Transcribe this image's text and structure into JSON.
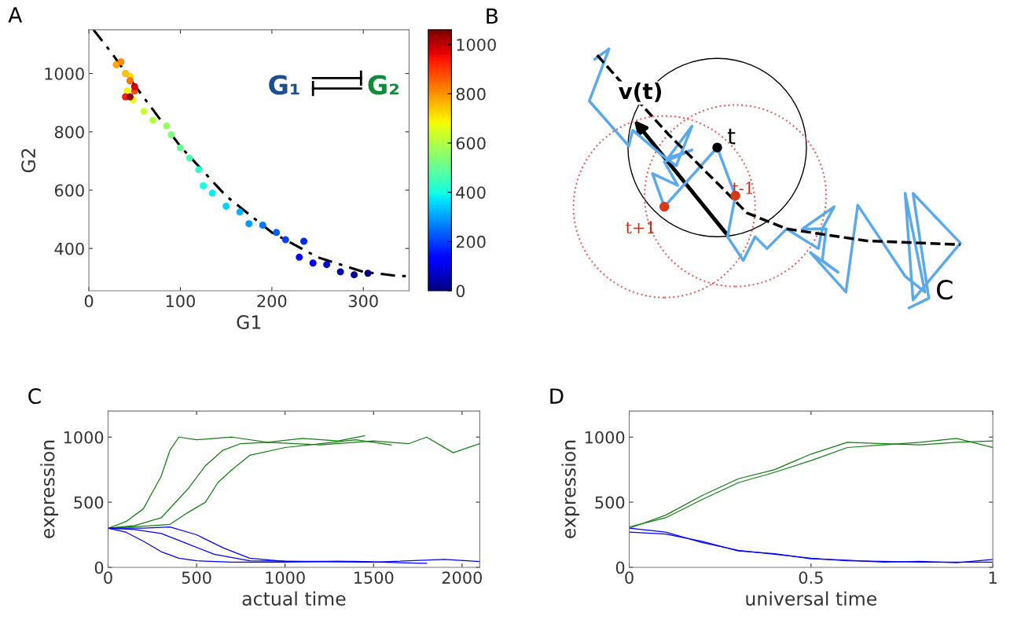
{
  "chart_data": [
    {
      "type": "scatter",
      "title": "A",
      "xlabel": "G1",
      "ylabel": "G2",
      "xlim": [
        0,
        350
      ],
      "xticks": [
        0,
        100,
        200,
        300
      ],
      "ylim": [
        255,
        1150
      ],
      "yticks": [
        400,
        600,
        800,
        1000
      ],
      "clim": [
        0,
        1060
      ],
      "cticks": [
        0,
        200,
        400,
        600,
        800,
        1000
      ],
      "annotations": [
        "G₁",
        "G₂"
      ],
      "series": [
        {
          "type": "line",
          "color": "#000000",
          "line_style": "dashed",
          "x": [
            5,
            25,
            50,
            100,
            150,
            200,
            250,
            300,
            340,
            350
          ],
          "values": [
            1150,
            1070,
            960,
            750,
            580,
            455,
            370,
            320,
            305,
            306
          ]
        },
        {
          "type": "scatter",
          "x": [
            305,
            290,
            275,
            260,
            245,
            230,
            235,
            215,
            205,
            190,
            175,
            165,
            150,
            135,
            125,
            120,
            110,
            100,
            90,
            85,
            70,
            60,
            48,
            42,
            45,
            40,
            30,
            35,
            45,
            50,
            40,
            50,
            45
          ],
          "values": [
            315,
            310,
            320,
            345,
            350,
            370,
            425,
            430,
            455,
            480,
            485,
            525,
            545,
            590,
            615,
            670,
            710,
            745,
            790,
            820,
            840,
            870,
            910,
            940,
            990,
            1000,
            1030,
            1040,
            975,
            940,
            920,
            955,
            920
          ],
          "colors": [
            "#000080",
            "#000093",
            "#0000b0",
            "#0000cc",
            "#0000e9",
            "#0007ff",
            "#0024ff",
            "#0041ff",
            "#005eff",
            "#007bff",
            "#0097ff",
            "#00b4ff",
            "#00d1ff",
            "#00eeff",
            "#0cfff3",
            "#29ffd6",
            "#46ffb9",
            "#63ff9c",
            "#80ff80",
            "#9cff63",
            "#b9ff46",
            "#d6ff29",
            "#f3ff0c",
            "#ffee00",
            "#ffd100",
            "#ffb400",
            "#ff9700",
            "#ff7b00",
            "#ff5e00",
            "#ff3700",
            "#ff0700",
            "#cc0000",
            "#930000"
          ],
          "cvalues": [
            0,
            20,
            50,
            80,
            110,
            140,
            170,
            200,
            230,
            260,
            290,
            320,
            350,
            380,
            410,
            440,
            470,
            500,
            530,
            560,
            590,
            620,
            650,
            680,
            710,
            740,
            770,
            800,
            830,
            870,
            920,
            980,
            1040
          ]
        }
      ]
    },
    {
      "type": "other",
      "title": "B",
      "annotations": [
        "v(t)",
        "t",
        "t-1",
        "t+1",
        "C"
      ]
    },
    {
      "type": "line",
      "title": "C",
      "xlabel": "actual time",
      "ylabel": "expression",
      "xlim": [
        0,
        2100
      ],
      "xticks": [
        0,
        500,
        1000,
        1500,
        2000
      ],
      "ylim": [
        0,
        1200
      ],
      "yticks": [
        0,
        500,
        1000
      ],
      "series": [
        {
          "color": "#137f13",
          "x": [
            0,
            100,
            200,
            300,
            350,
            400,
            500,
            700,
            900,
            1100,
            1300,
            1450
          ],
          "values": [
            300,
            350,
            450,
            700,
            900,
            1000,
            980,
            1000,
            960,
            990,
            970,
            1010
          ]
        },
        {
          "color": "#137f13",
          "x": [
            0,
            150,
            300,
            450,
            550,
            650,
            750,
            900,
            1200,
            1500,
            1700,
            1800,
            1950,
            2100
          ],
          "values": [
            300,
            320,
            380,
            600,
            780,
            900,
            950,
            960,
            940,
            970,
            950,
            1000,
            880,
            950
          ]
        },
        {
          "color": "#137f13",
          "x": [
            0,
            200,
            350,
            450,
            550,
            620,
            700,
            800,
            1000,
            1200,
            1400,
            1600
          ],
          "values": [
            300,
            315,
            330,
            420,
            500,
            650,
            750,
            860,
            920,
            950,
            980,
            940
          ]
        },
        {
          "color": "#0000ff",
          "x": [
            0,
            100,
            200,
            300,
            400,
            500,
            700,
            1000,
            1300,
            1500
          ],
          "values": [
            300,
            270,
            200,
            120,
            70,
            50,
            40,
            40,
            45,
            40
          ]
        },
        {
          "color": "#0000ff",
          "x": [
            0,
            150,
            300,
            450,
            600,
            800,
            1100,
            1400,
            1800
          ],
          "values": [
            300,
            290,
            260,
            180,
            100,
            50,
            45,
            45,
            30
          ]
        },
        {
          "color": "#0000ff",
          "x": [
            0,
            200,
            350,
            500,
            650,
            800,
            1000,
            1500,
            1900,
            2100
          ],
          "values": [
            300,
            300,
            310,
            250,
            150,
            70,
            45,
            40,
            60,
            45
          ]
        }
      ]
    },
    {
      "type": "line",
      "title": "D",
      "xlabel": "universal time",
      "ylabel": "expression",
      "xlim": [
        0,
        1
      ],
      "xticks": [
        0,
        0.5,
        1
      ],
      "ylim": [
        0,
        1200
      ],
      "yticks": [
        0,
        500,
        1000
      ],
      "series": [
        {
          "color": "#137f13",
          "x": [
            0,
            0.1,
            0.2,
            0.3,
            0.4,
            0.5,
            0.6,
            0.7,
            0.8,
            0.9,
            1
          ],
          "values": [
            300,
            400,
            550,
            680,
            750,
            870,
            960,
            950,
            940,
            960,
            970
          ]
        },
        {
          "color": "#137f13",
          "x": [
            0,
            0.1,
            0.2,
            0.3,
            0.4,
            0.5,
            0.6,
            0.7,
            0.8,
            0.9,
            1
          ],
          "values": [
            310,
            380,
            520,
            650,
            730,
            820,
            920,
            940,
            960,
            990,
            920
          ]
        },
        {
          "color": "#0000ff",
          "x": [
            0,
            0.1,
            0.2,
            0.3,
            0.4,
            0.5,
            0.6,
            0.7,
            0.8,
            0.9,
            1
          ],
          "values": [
            300,
            270,
            190,
            130,
            100,
            70,
            50,
            45,
            40,
            40,
            40
          ]
        },
        {
          "color": "#0000ff",
          "x": [
            0,
            0.1,
            0.2,
            0.3,
            0.4,
            0.5,
            0.6,
            0.7,
            0.8,
            0.9,
            1
          ],
          "values": [
            270,
            255,
            200,
            125,
            105,
            65,
            55,
            40,
            45,
            35,
            60
          ]
        }
      ]
    }
  ]
}
